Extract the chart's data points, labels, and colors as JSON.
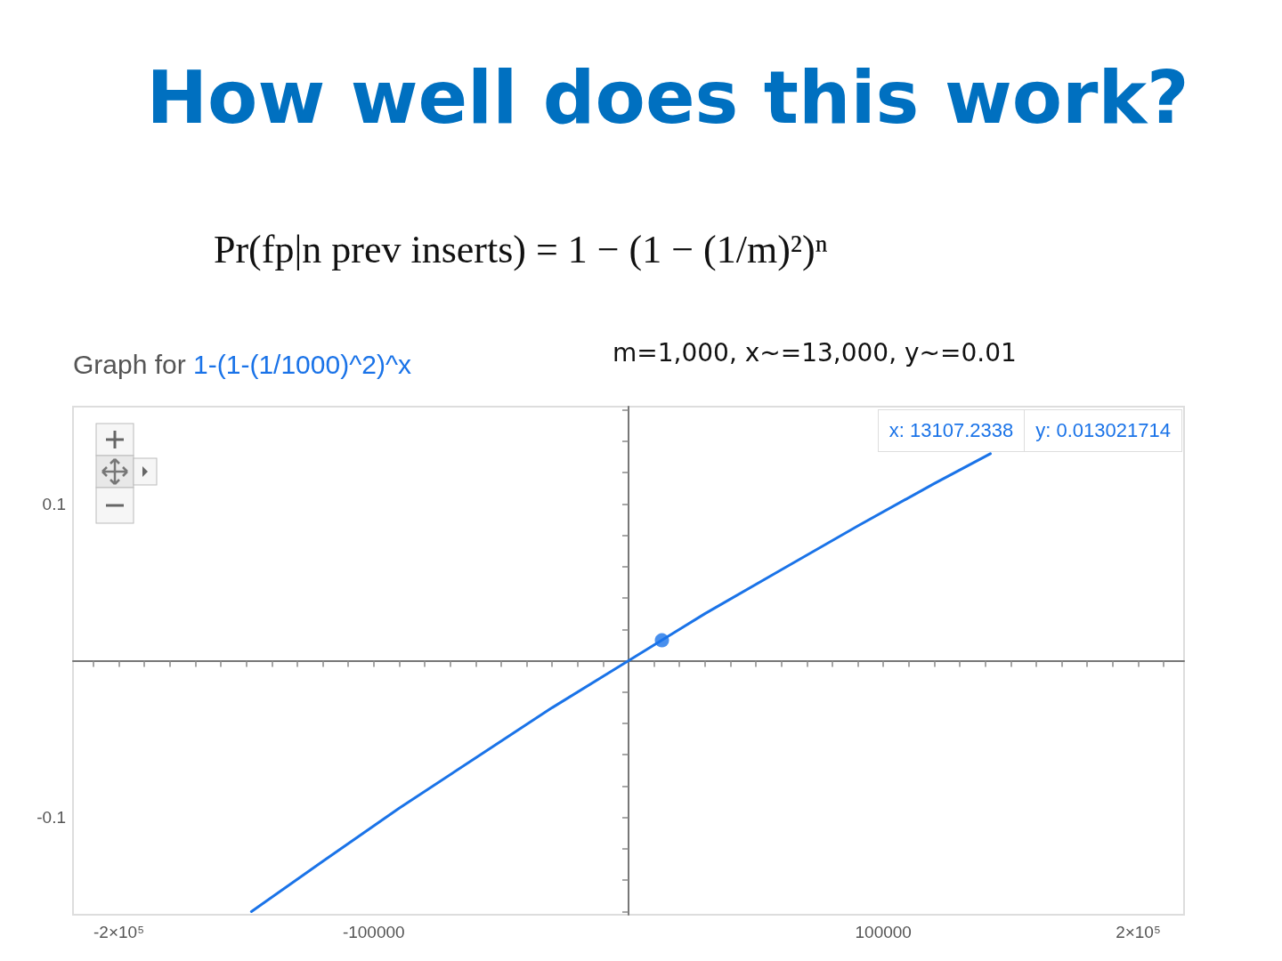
{
  "chart_data": {
    "type": "line",
    "title": "How well does this work?",
    "subtitle": "Graph for 1-(1-(1/1000)^2)^x",
    "annotations": [
      "Pr(fp|n prev inserts) = 1 − (1 − (1/m)²)ⁿ",
      "m=1,000, x~=13,000, y~=0.01",
      "x: 13107.2338",
      "y: 0.013021714"
    ],
    "xlim": [
      -218000,
      218000
    ],
    "ylim": [
      -0.162,
      0.162
    ],
    "xticks": [
      {
        "value": -210000,
        "label": null
      },
      {
        "value": -200000,
        "label": "-2×10⁵"
      },
      {
        "value": -190000,
        "label": null
      },
      {
        "value": -180000,
        "label": null
      },
      {
        "value": -170000,
        "label": null
      },
      {
        "value": -160000,
        "label": null
      },
      {
        "value": -150000,
        "label": null
      },
      {
        "value": -140000,
        "label": null
      },
      {
        "value": -130000,
        "label": null
      },
      {
        "value": -120000,
        "label": null
      },
      {
        "value": -110000,
        "label": null
      },
      -100000,
      {
        "value": -90000,
        "label": null
      },
      {
        "value": -80000,
        "label": null
      },
      {
        "value": -70000,
        "label": null
      },
      {
        "value": -60000,
        "label": null
      },
      {
        "value": -50000,
        "label": null
      },
      {
        "value": -40000,
        "label": null
      },
      {
        "value": -30000,
        "label": null
      },
      {
        "value": -20000,
        "label": null
      },
      {
        "value": -10000,
        "label": null
      },
      {
        "value": 10000,
        "label": null
      },
      {
        "value": 20000,
        "label": null
      },
      {
        "value": 30000,
        "label": null
      },
      {
        "value": 40000,
        "label": null
      },
      {
        "value": 50000,
        "label": null
      },
      {
        "value": 60000,
        "label": null
      },
      {
        "value": 70000,
        "label": null
      },
      {
        "value": 80000,
        "label": null
      },
      {
        "value": 90000,
        "label": null
      },
      100000,
      {
        "value": 110000,
        "label": null
      },
      {
        "value": 120000,
        "label": null
      },
      {
        "value": 130000,
        "label": null
      },
      {
        "value": 140000,
        "label": null
      },
      {
        "value": 150000,
        "label": null
      },
      {
        "value": 160000,
        "label": null
      },
      {
        "value": 170000,
        "label": null
      },
      {
        "value": 180000,
        "label": null
      },
      {
        "value": 190000,
        "label": null
      },
      {
        "value": 200000,
        "label": "2×10⁵"
      },
      {
        "value": 210000,
        "label": null
      }
    ],
    "yticks": [
      {
        "value": -0.16,
        "label": null
      },
      {
        "value": -0.14,
        "label": null
      },
      {
        "value": -0.12,
        "label": null
      },
      -0.1,
      {
        "value": -0.08,
        "label": null
      },
      {
        "value": -0.06,
        "label": null
      },
      {
        "value": -0.04,
        "label": null
      },
      {
        "value": -0.02,
        "label": null
      },
      {
        "value": 0.02,
        "label": null
      },
      {
        "value": 0.04,
        "label": null
      },
      {
        "value": 0.06,
        "label": null
      },
      {
        "value": 0.08,
        "label": null
      },
      0.1,
      {
        "value": 0.12,
        "label": null
      },
      {
        "value": 0.14,
        "label": null
      },
      {
        "value": 0.16,
        "label": null
      }
    ],
    "series": [
      {
        "color": "#1a73e8",
        "marker": "none",
        "x": [
          -148000,
          -120000,
          -90000,
          -60000,
          -30000,
          0,
          30000,
          60000,
          90000,
          120000,
          142000
        ],
        "values": [
          -0.16,
          -0.128,
          -0.094,
          -0.062,
          -0.03,
          0,
          0.03,
          0.058,
          0.086,
          0.113,
          0.132
        ]
      },
      {
        "type": "scatter",
        "color": "#1a73e8",
        "marker": "circle",
        "x": [
          13100
        ],
        "values": [
          0.013
        ]
      }
    ]
  }
}
